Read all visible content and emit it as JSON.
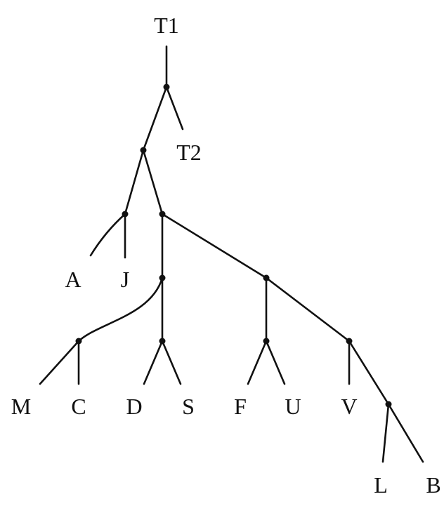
{
  "tree": {
    "labels": {
      "t1": "T1",
      "t2": "T2",
      "a": "A",
      "j": "J",
      "m": "M",
      "c": "C",
      "d": "D",
      "s": "S",
      "f": "F",
      "u": "U",
      "v": "V",
      "l": "L",
      "b": "B"
    }
  }
}
